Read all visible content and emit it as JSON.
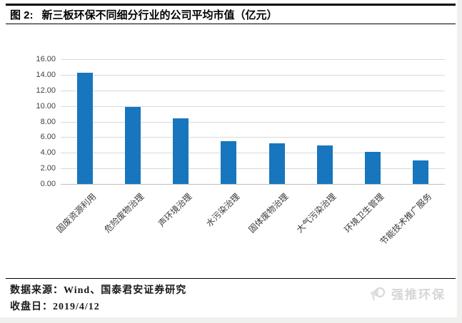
{
  "figure": {
    "label": "图 2:",
    "title": "新三板环保不同细分行业的公司平均市值（亿元）"
  },
  "chart_data": {
    "type": "bar",
    "title": "新三板环保不同细分行业的公司平均市值（亿元）",
    "categories": [
      "固废资源利用",
      "危险废物治理",
      "声环境治理",
      "水污染治理",
      "固体废物治理",
      "大气污染治理",
      "环境卫生管理",
      "节能技术推广服务"
    ],
    "values": [
      14.3,
      9.9,
      8.4,
      5.5,
      5.2,
      4.9,
      4.1,
      3.0
    ],
    "xlabel": "",
    "ylabel": "",
    "ylim": [
      0,
      16
    ],
    "ytick_step": 2,
    "ytick_labels": [
      "0.00",
      "2.00",
      "4.00",
      "6.00",
      "8.00",
      "10.00",
      "12.00",
      "14.00",
      "16.00"
    ],
    "grid": "horizontal",
    "legend": "none",
    "bar_color": "#1776bd",
    "x_label_rotation": -45
  },
  "footer": {
    "source_label": "数据来源：",
    "source_value": "Wind、国泰君安证券研究",
    "date_label": "收盘日：",
    "date_value": "2019/4/12"
  },
  "watermark": {
    "icon": "megaphone-icon",
    "text": "强推环保"
  },
  "colors": {
    "bar": "#1776bd",
    "gridline": "#d9d9d9",
    "axis_line": "#bfbfbf",
    "tick_text": "#404040",
    "title_text": "#000000",
    "watermark": "#d6d6d6",
    "page_bg": "#f0f0ee",
    "content_bg": "#ffffff"
  }
}
